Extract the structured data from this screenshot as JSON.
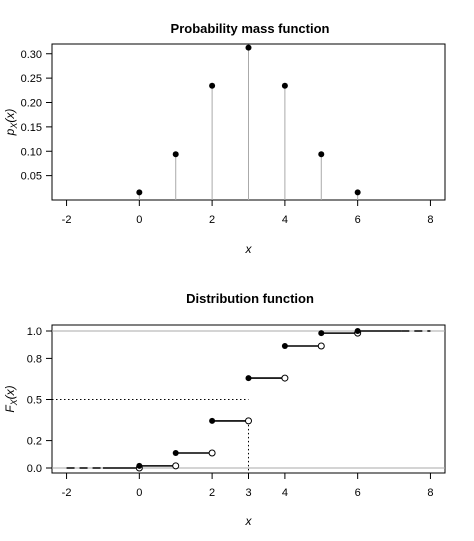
{
  "chart_data": [
    {
      "type": "scatter",
      "title": "Probability mass function",
      "xlabel": "x",
      "ylabel": "p_X(x)",
      "xlim": [
        -2.4,
        8.4
      ],
      "ylim": [
        0.0,
        0.32
      ],
      "x_ticks": [
        -2,
        0,
        2,
        4,
        6,
        8
      ],
      "y_ticks": [
        0.05,
        0.1,
        0.15,
        0.2,
        0.25,
        0.3
      ],
      "y_tick_labels": [
        "0.05",
        "0.10",
        "0.15",
        "0.20",
        "0.25",
        "0.30"
      ],
      "x": [
        0,
        1,
        2,
        3,
        4,
        5,
        6
      ],
      "y": [
        0.0156,
        0.0938,
        0.2344,
        0.3125,
        0.2344,
        0.0938,
        0.0156
      ],
      "stems": true,
      "grid": false
    },
    {
      "type": "line",
      "title": "Distribution function",
      "xlabel": "x",
      "ylabel": "F_X(x)",
      "xlim": [
        -2.4,
        8.4
      ],
      "ylim": [
        0.0,
        1.0
      ],
      "x_ticks": [
        -2,
        0,
        2,
        3,
        4,
        6,
        8
      ],
      "y_ticks": [
        0.0,
        0.2,
        0.5,
        0.8,
        1.0
      ],
      "y_tick_labels": [
        "0.0",
        "0.2",
        "0.5",
        "0.8",
        "1.0"
      ],
      "steps": [
        {
          "x0": 0,
          "x1": 1,
          "y": 0.0156
        },
        {
          "x0": 1,
          "x1": 2,
          "y": 0.1094
        },
        {
          "x0": 2,
          "x1": 3,
          "y": 0.3438
        },
        {
          "x0": 3,
          "x1": 4,
          "y": 0.6563
        },
        {
          "x0": 4,
          "x1": 5,
          "y": 0.8906
        },
        {
          "x0": 5,
          "x1": 6,
          "y": 0.9844
        }
      ],
      "left_segment": {
        "x0": -2,
        "x1": 0,
        "y": 0.0
      },
      "right_segment": {
        "x0": 6,
        "x1": 8,
        "y": 1.0
      },
      "reference_hlines": [
        0.0,
        1.0
      ],
      "median_guide": {
        "x": 3,
        "y": 0.5
      },
      "grid": false
    }
  ]
}
